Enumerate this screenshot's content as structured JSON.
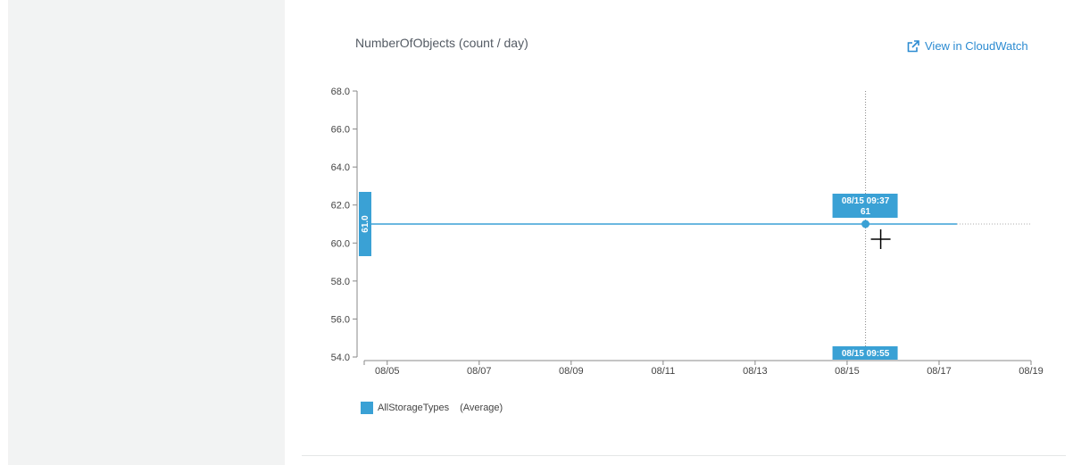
{
  "chart_data": {
    "type": "line",
    "title": "NumberOfObjects (count / day)",
    "ylim": [
      54.0,
      68.0
    ],
    "y_ticks": [
      "54.0",
      "56.0",
      "58.0",
      "60.0",
      "62.0",
      "64.0",
      "66.0",
      "68.0"
    ],
    "x_range_days": [
      4.5,
      19.0
    ],
    "x_ticks": [
      "08/05",
      "08/07",
      "08/09",
      "08/11",
      "08/13",
      "08/15",
      "08/17",
      "08/19"
    ],
    "series": [
      {
        "name": "AllStorageTypes",
        "stat": "(Average)",
        "color": "#3aa1d5",
        "x_start": "08/05",
        "x_end": "08/17",
        "value": 61
      }
    ],
    "hover": {
      "date_label": "08/15 09:37",
      "value_label": "61",
      "axis_label": "08/15 09:55",
      "y_axis_marker": "61.0",
      "value": 61
    },
    "grid": false,
    "legend_position": "bottom-left"
  },
  "header": {
    "link_label": "View in CloudWatch",
    "link_icon": "external-link-icon",
    "accent": "#2c8bd1"
  }
}
